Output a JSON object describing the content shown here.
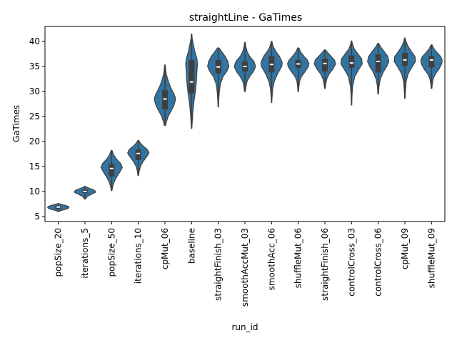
{
  "chart_data": {
    "type": "violin",
    "title": "straightLine - GaTimes",
    "xlabel": "run_id",
    "ylabel": "GaTimes",
    "ylim": [
      4,
      43
    ],
    "yticks": [
      5,
      10,
      15,
      20,
      25,
      30,
      35,
      40
    ],
    "grid": false,
    "violin_color": "#3274a1",
    "box_color": "#3f3f3f",
    "median_color": "#ffffff",
    "categories": [
      "popSize_20",
      "iterations_5",
      "popSize_50",
      "iterations_10",
      "cpMut_06",
      "baseline",
      "straightFinish_03",
      "smoothAccMut_03",
      "smoothAcc_06",
      "shuffleMut_06",
      "straightFinish_06",
      "controlCross_03",
      "controlCross_06",
      "cpMut_09",
      "shuffleMut_09"
    ],
    "series": [
      {
        "min": 6.0,
        "max": 7.6,
        "q1": 6.5,
        "median": 6.9,
        "q3": 7.2,
        "density": [
          [
            6.0,
            0.05
          ],
          [
            6.2,
            0.25
          ],
          [
            6.4,
            0.6
          ],
          [
            6.6,
            0.9
          ],
          [
            6.8,
            1.0
          ],
          [
            7.0,
            0.95
          ],
          [
            7.2,
            0.7
          ],
          [
            7.4,
            0.3
          ],
          [
            7.6,
            0.05
          ]
        ]
      },
      {
        "min": 8.5,
        "max": 11.0,
        "q1": 9.7,
        "median": 10.0,
        "q3": 10.3,
        "density": [
          [
            8.5,
            0.05
          ],
          [
            9.0,
            0.2
          ],
          [
            9.4,
            0.55
          ],
          [
            9.8,
            0.95
          ],
          [
            10.0,
            1.0
          ],
          [
            10.3,
            0.85
          ],
          [
            10.6,
            0.45
          ],
          [
            10.9,
            0.12
          ],
          [
            11.0,
            0.04
          ]
        ]
      },
      {
        "min": 10.2,
        "max": 18.2,
        "q1": 13.0,
        "median": 14.6,
        "q3": 15.5,
        "density": [
          [
            10.2,
            0.03
          ],
          [
            11.0,
            0.1
          ],
          [
            12.0,
            0.25
          ],
          [
            13.0,
            0.5
          ],
          [
            14.0,
            0.8
          ],
          [
            14.8,
            1.0
          ],
          [
            15.6,
            0.85
          ],
          [
            16.5,
            0.45
          ],
          [
            17.3,
            0.2
          ],
          [
            18.2,
            0.04
          ]
        ]
      },
      {
        "min": 13.2,
        "max": 20.2,
        "q1": 16.3,
        "median": 17.6,
        "q3": 18.4,
        "density": [
          [
            13.2,
            0.03
          ],
          [
            14.0,
            0.08
          ],
          [
            15.0,
            0.2
          ],
          [
            16.0,
            0.45
          ],
          [
            17.0,
            0.8
          ],
          [
            17.7,
            1.0
          ],
          [
            18.4,
            0.85
          ],
          [
            19.2,
            0.4
          ],
          [
            19.8,
            0.15
          ],
          [
            20.2,
            0.04
          ]
        ]
      },
      {
        "min": 23.2,
        "max": 35.3,
        "q1": 26.4,
        "median": 28.5,
        "q3": 30.3,
        "density": [
          [
            23.2,
            0.05
          ],
          [
            24.0,
            0.15
          ],
          [
            25.0,
            0.3
          ],
          [
            26.0,
            0.55
          ],
          [
            27.0,
            0.8
          ],
          [
            28.0,
            0.95
          ],
          [
            28.6,
            1.0
          ],
          [
            29.5,
            0.85
          ],
          [
            30.5,
            0.6
          ],
          [
            31.5,
            0.4
          ],
          [
            32.5,
            0.25
          ],
          [
            33.5,
            0.12
          ],
          [
            34.5,
            0.06
          ],
          [
            35.3,
            0.02
          ]
        ]
      },
      {
        "min": 22.6,
        "max": 41.5,
        "q1": 29.6,
        "median": 31.9,
        "q3": 36.3,
        "density": [
          [
            22.6,
            0.02
          ],
          [
            24.0,
            0.06
          ],
          [
            26.0,
            0.12
          ],
          [
            28.0,
            0.22
          ],
          [
            30.0,
            0.35
          ],
          [
            32.0,
            0.45
          ],
          [
            34.0,
            0.5
          ],
          [
            35.5,
            0.55
          ],
          [
            36.5,
            0.5
          ],
          [
            38.0,
            0.3
          ],
          [
            39.5,
            0.15
          ],
          [
            40.5,
            0.06
          ],
          [
            41.5,
            0.02
          ]
        ]
      },
      {
        "min": 26.9,
        "max": 38.7,
        "q1": 33.6,
        "median": 34.9,
        "q3": 36.3,
        "density": [
          [
            26.9,
            0.02
          ],
          [
            28.5,
            0.05
          ],
          [
            30.0,
            0.1
          ],
          [
            31.5,
            0.2
          ],
          [
            33.0,
            0.45
          ],
          [
            34.0,
            0.8
          ],
          [
            35.0,
            1.0
          ],
          [
            36.0,
            0.9
          ],
          [
            37.0,
            0.65
          ],
          [
            38.0,
            0.3
          ],
          [
            38.7,
            0.08
          ]
        ]
      },
      {
        "min": 30.0,
        "max": 39.8,
        "q1": 34.0,
        "median": 35.0,
        "q3": 36.0,
        "density": [
          [
            30.0,
            0.04
          ],
          [
            31.0,
            0.1
          ],
          [
            32.0,
            0.2
          ],
          [
            33.0,
            0.45
          ],
          [
            34.0,
            0.8
          ],
          [
            35.0,
            1.0
          ],
          [
            36.0,
            0.85
          ],
          [
            37.0,
            0.45
          ],
          [
            38.0,
            0.2
          ],
          [
            39.0,
            0.08
          ],
          [
            39.8,
            0.03
          ]
        ]
      },
      {
        "min": 27.8,
        "max": 40.0,
        "q1": 33.8,
        "median": 35.4,
        "q3": 37.1,
        "density": [
          [
            27.8,
            0.02
          ],
          [
            29.0,
            0.05
          ],
          [
            30.5,
            0.1
          ],
          [
            32.0,
            0.25
          ],
          [
            33.5,
            0.55
          ],
          [
            35.0,
            0.95
          ],
          [
            35.8,
            1.0
          ],
          [
            37.0,
            0.75
          ],
          [
            38.0,
            0.4
          ],
          [
            39.0,
            0.15
          ],
          [
            40.0,
            0.03
          ]
        ]
      },
      {
        "min": 30.0,
        "max": 38.7,
        "q1": 34.7,
        "median": 35.5,
        "q3": 36.3,
        "density": [
          [
            30.0,
            0.03
          ],
          [
            31.0,
            0.06
          ],
          [
            32.0,
            0.12
          ],
          [
            33.0,
            0.3
          ],
          [
            34.0,
            0.65
          ],
          [
            35.0,
            0.95
          ],
          [
            35.6,
            1.0
          ],
          [
            36.3,
            0.85
          ],
          [
            37.0,
            0.55
          ],
          [
            37.8,
            0.25
          ],
          [
            38.7,
            0.05
          ]
        ]
      },
      {
        "min": 30.6,
        "max": 38.3,
        "q1": 34.0,
        "median": 35.6,
        "q3": 36.5,
        "density": [
          [
            30.6,
            0.03
          ],
          [
            31.5,
            0.08
          ],
          [
            32.5,
            0.18
          ],
          [
            33.5,
            0.4
          ],
          [
            34.5,
            0.75
          ],
          [
            35.5,
            1.0
          ],
          [
            36.3,
            0.9
          ],
          [
            37.0,
            0.6
          ],
          [
            37.7,
            0.28
          ],
          [
            38.3,
            0.06
          ]
        ]
      },
      {
        "min": 27.3,
        "max": 40.1,
        "q1": 34.7,
        "median": 35.7,
        "q3": 37.2,
        "density": [
          [
            27.3,
            0.02
          ],
          [
            29.0,
            0.04
          ],
          [
            31.0,
            0.1
          ],
          [
            33.0,
            0.3
          ],
          [
            34.5,
            0.7
          ],
          [
            35.5,
            1.0
          ],
          [
            36.5,
            0.95
          ],
          [
            37.5,
            0.6
          ],
          [
            38.5,
            0.25
          ],
          [
            39.5,
            0.08
          ],
          [
            40.1,
            0.02
          ]
        ]
      },
      {
        "min": 29.5,
        "max": 39.6,
        "q1": 33.8,
        "median": 36.0,
        "q3": 37.4,
        "density": [
          [
            29.5,
            0.03
          ],
          [
            31.0,
            0.07
          ],
          [
            32.5,
            0.2
          ],
          [
            34.0,
            0.5
          ],
          [
            35.0,
            0.8
          ],
          [
            36.0,
            1.0
          ],
          [
            37.0,
            0.9
          ],
          [
            38.0,
            0.55
          ],
          [
            39.0,
            0.2
          ],
          [
            39.6,
            0.05
          ]
        ]
      },
      {
        "min": 28.6,
        "max": 40.7,
        "q1": 35.1,
        "median": 36.3,
        "q3": 37.7,
        "density": [
          [
            28.6,
            0.02
          ],
          [
            30.0,
            0.05
          ],
          [
            32.0,
            0.12
          ],
          [
            33.5,
            0.3
          ],
          [
            35.0,
            0.7
          ],
          [
            36.0,
            1.0
          ],
          [
            37.0,
            0.95
          ],
          [
            38.0,
            0.6
          ],
          [
            39.0,
            0.3
          ],
          [
            40.0,
            0.1
          ],
          [
            40.7,
            0.02
          ]
        ]
      },
      {
        "min": 30.6,
        "max": 39.3,
        "q1": 34.8,
        "median": 36.3,
        "q3": 37.1,
        "density": [
          [
            30.6,
            0.03
          ],
          [
            31.5,
            0.07
          ],
          [
            32.5,
            0.15
          ],
          [
            33.5,
            0.35
          ],
          [
            34.5,
            0.7
          ],
          [
            35.5,
            0.95
          ],
          [
            36.3,
            1.0
          ],
          [
            37.0,
            0.85
          ],
          [
            37.8,
            0.5
          ],
          [
            38.6,
            0.2
          ],
          [
            39.3,
            0.05
          ]
        ]
      }
    ]
  }
}
